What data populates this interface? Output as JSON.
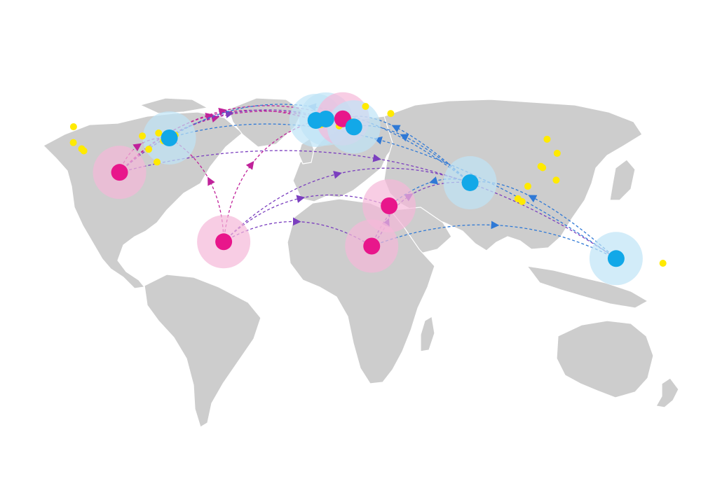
{
  "palette": {
    "land": "#cdcdcd",
    "hub_magenta": "#e8168b",
    "hub_magenta_halo": "#f5b8d8",
    "hub_cyan": "#12a8e8",
    "hub_cyan_halo": "#bfe4f7",
    "minor_yellow": "#ffea00",
    "route_magenta": "#c0229a",
    "route_purple": "#7b3fbf",
    "route_blue": "#2f79d6"
  },
  "icons": {
    "hub": "circle-with-halo",
    "minor_city": "small-dot",
    "arrow": "triangle-arrowhead"
  },
  "hubs": [
    {
      "id": "mexico",
      "type": "magenta",
      "lon": -99.1,
      "lat": 19.4
    },
    {
      "id": "sao-paulo",
      "type": "magenta",
      "lon": -46.6,
      "lat": -23.5
    },
    {
      "id": "johannesburg",
      "type": "magenta",
      "lon": 28.0,
      "lat": -26.2
    },
    {
      "id": "nairobi",
      "type": "magenta",
      "lon": 36.8,
      "lat": -1.3
    },
    {
      "id": "new-york",
      "type": "cyan",
      "lon": -74.0,
      "lat": 40.7
    },
    {
      "id": "london",
      "type": "cyan",
      "lon": -0.1,
      "lat": 51.5
    },
    {
      "id": "amsterdam",
      "type": "cyan",
      "lon": 4.9,
      "lat": 52.4
    },
    {
      "id": "berlin",
      "type": "magenta",
      "lon": 13.4,
      "lat": 52.5
    },
    {
      "id": "budapest",
      "type": "cyan",
      "lon": 19.0,
      "lat": 47.5
    },
    {
      "id": "bangalore",
      "type": "cyan",
      "lon": 77.6,
      "lat": 13.0
    },
    {
      "id": "sydney",
      "type": "cyan",
      "lon": 151.2,
      "lat": -33.9
    }
  ],
  "minor_cities": [
    {
      "lon": -122.4,
      "lat": 37.8
    },
    {
      "lon": -118.2,
      "lat": 34.0
    },
    {
      "lon": -117.1,
      "lat": 32.7
    },
    {
      "lon": -122.3,
      "lat": 47.6
    },
    {
      "lon": -87.6,
      "lat": 41.9
    },
    {
      "lon": -79.4,
      "lat": 43.7
    },
    {
      "lon": -77.0,
      "lat": 38.9
    },
    {
      "lon": -84.4,
      "lat": 33.7
    },
    {
      "lon": -80.2,
      "lat": 25.8
    },
    {
      "lon": -71.1,
      "lat": 42.4
    },
    {
      "lon": 24.9,
      "lat": 60.2
    },
    {
      "lon": 37.6,
      "lat": 55.8
    },
    {
      "lon": 17.0,
      "lat": 51.1
    },
    {
      "lon": 2.3,
      "lat": 48.9
    },
    {
      "lon": 11.6,
      "lat": 48.1
    },
    {
      "lon": 14.4,
      "lat": 50.1
    },
    {
      "lon": 116.4,
      "lat": 39.9
    },
    {
      "lon": 121.5,
      "lat": 31.2
    },
    {
      "lon": 114.2,
      "lat": 22.3
    },
    {
      "lon": 113.3,
      "lat": 23.1
    },
    {
      "lon": 106.7,
      "lat": 10.8
    },
    {
      "lon": 103.8,
      "lat": 1.35
    },
    {
      "lon": 101.7,
      "lat": 3.1
    },
    {
      "lon": 121.0,
      "lat": 14.6
    },
    {
      "lon": 174.8,
      "lat": -36.8
    }
  ],
  "routes": [
    {
      "from": "mexico",
      "to": "new-york",
      "color": "magenta",
      "bend": 0.35
    },
    {
      "from": "mexico",
      "to": "london",
      "color": "magenta",
      "bend": 0.3
    },
    {
      "from": "mexico",
      "to": "berlin",
      "color": "magenta",
      "bend": 0.3
    },
    {
      "from": "mexico",
      "to": "amsterdam",
      "color": "magenta",
      "bend": 0.26
    },
    {
      "from": "mexico",
      "to": "budapest",
      "color": "purple",
      "bend": 0.3
    },
    {
      "from": "mexico",
      "to": "sydney",
      "color": "purple",
      "bend": 0.22
    },
    {
      "from": "sao-paulo",
      "to": "new-york",
      "color": "magenta",
      "bend": -0.25
    },
    {
      "from": "sao-paulo",
      "to": "london",
      "color": "magenta",
      "bend": 0.3
    },
    {
      "from": "sao-paulo",
      "to": "nairobi",
      "color": "purple",
      "bend": 0.3
    },
    {
      "from": "sao-paulo",
      "to": "johannesburg",
      "color": "purple",
      "bend": -0.3
    },
    {
      "from": "sao-paulo",
      "to": "bangalore",
      "color": "purple",
      "bend": 0.3
    },
    {
      "from": "johannesburg",
      "to": "nairobi",
      "color": "purple",
      "bend": -0.35
    },
    {
      "from": "johannesburg",
      "to": "bangalore",
      "color": "purple",
      "bend": 0.35
    },
    {
      "from": "johannesburg",
      "to": "sydney",
      "color": "blue",
      "bend": 0.22
    },
    {
      "from": "bangalore",
      "to": "new-york",
      "color": "blue",
      "bend": 0.35
    },
    {
      "from": "bangalore",
      "to": "berlin",
      "color": "blue",
      "bend": 0.35
    },
    {
      "from": "bangalore",
      "to": "budapest",
      "color": "blue",
      "bend": 0.3
    },
    {
      "from": "bangalore",
      "to": "nairobi",
      "color": "blue",
      "bend": 0.3
    },
    {
      "from": "sydney",
      "to": "bangalore",
      "color": "blue",
      "bend": 0.3
    },
    {
      "from": "sydney",
      "to": "new-york",
      "color": "blue",
      "bend": 0.25
    }
  ]
}
